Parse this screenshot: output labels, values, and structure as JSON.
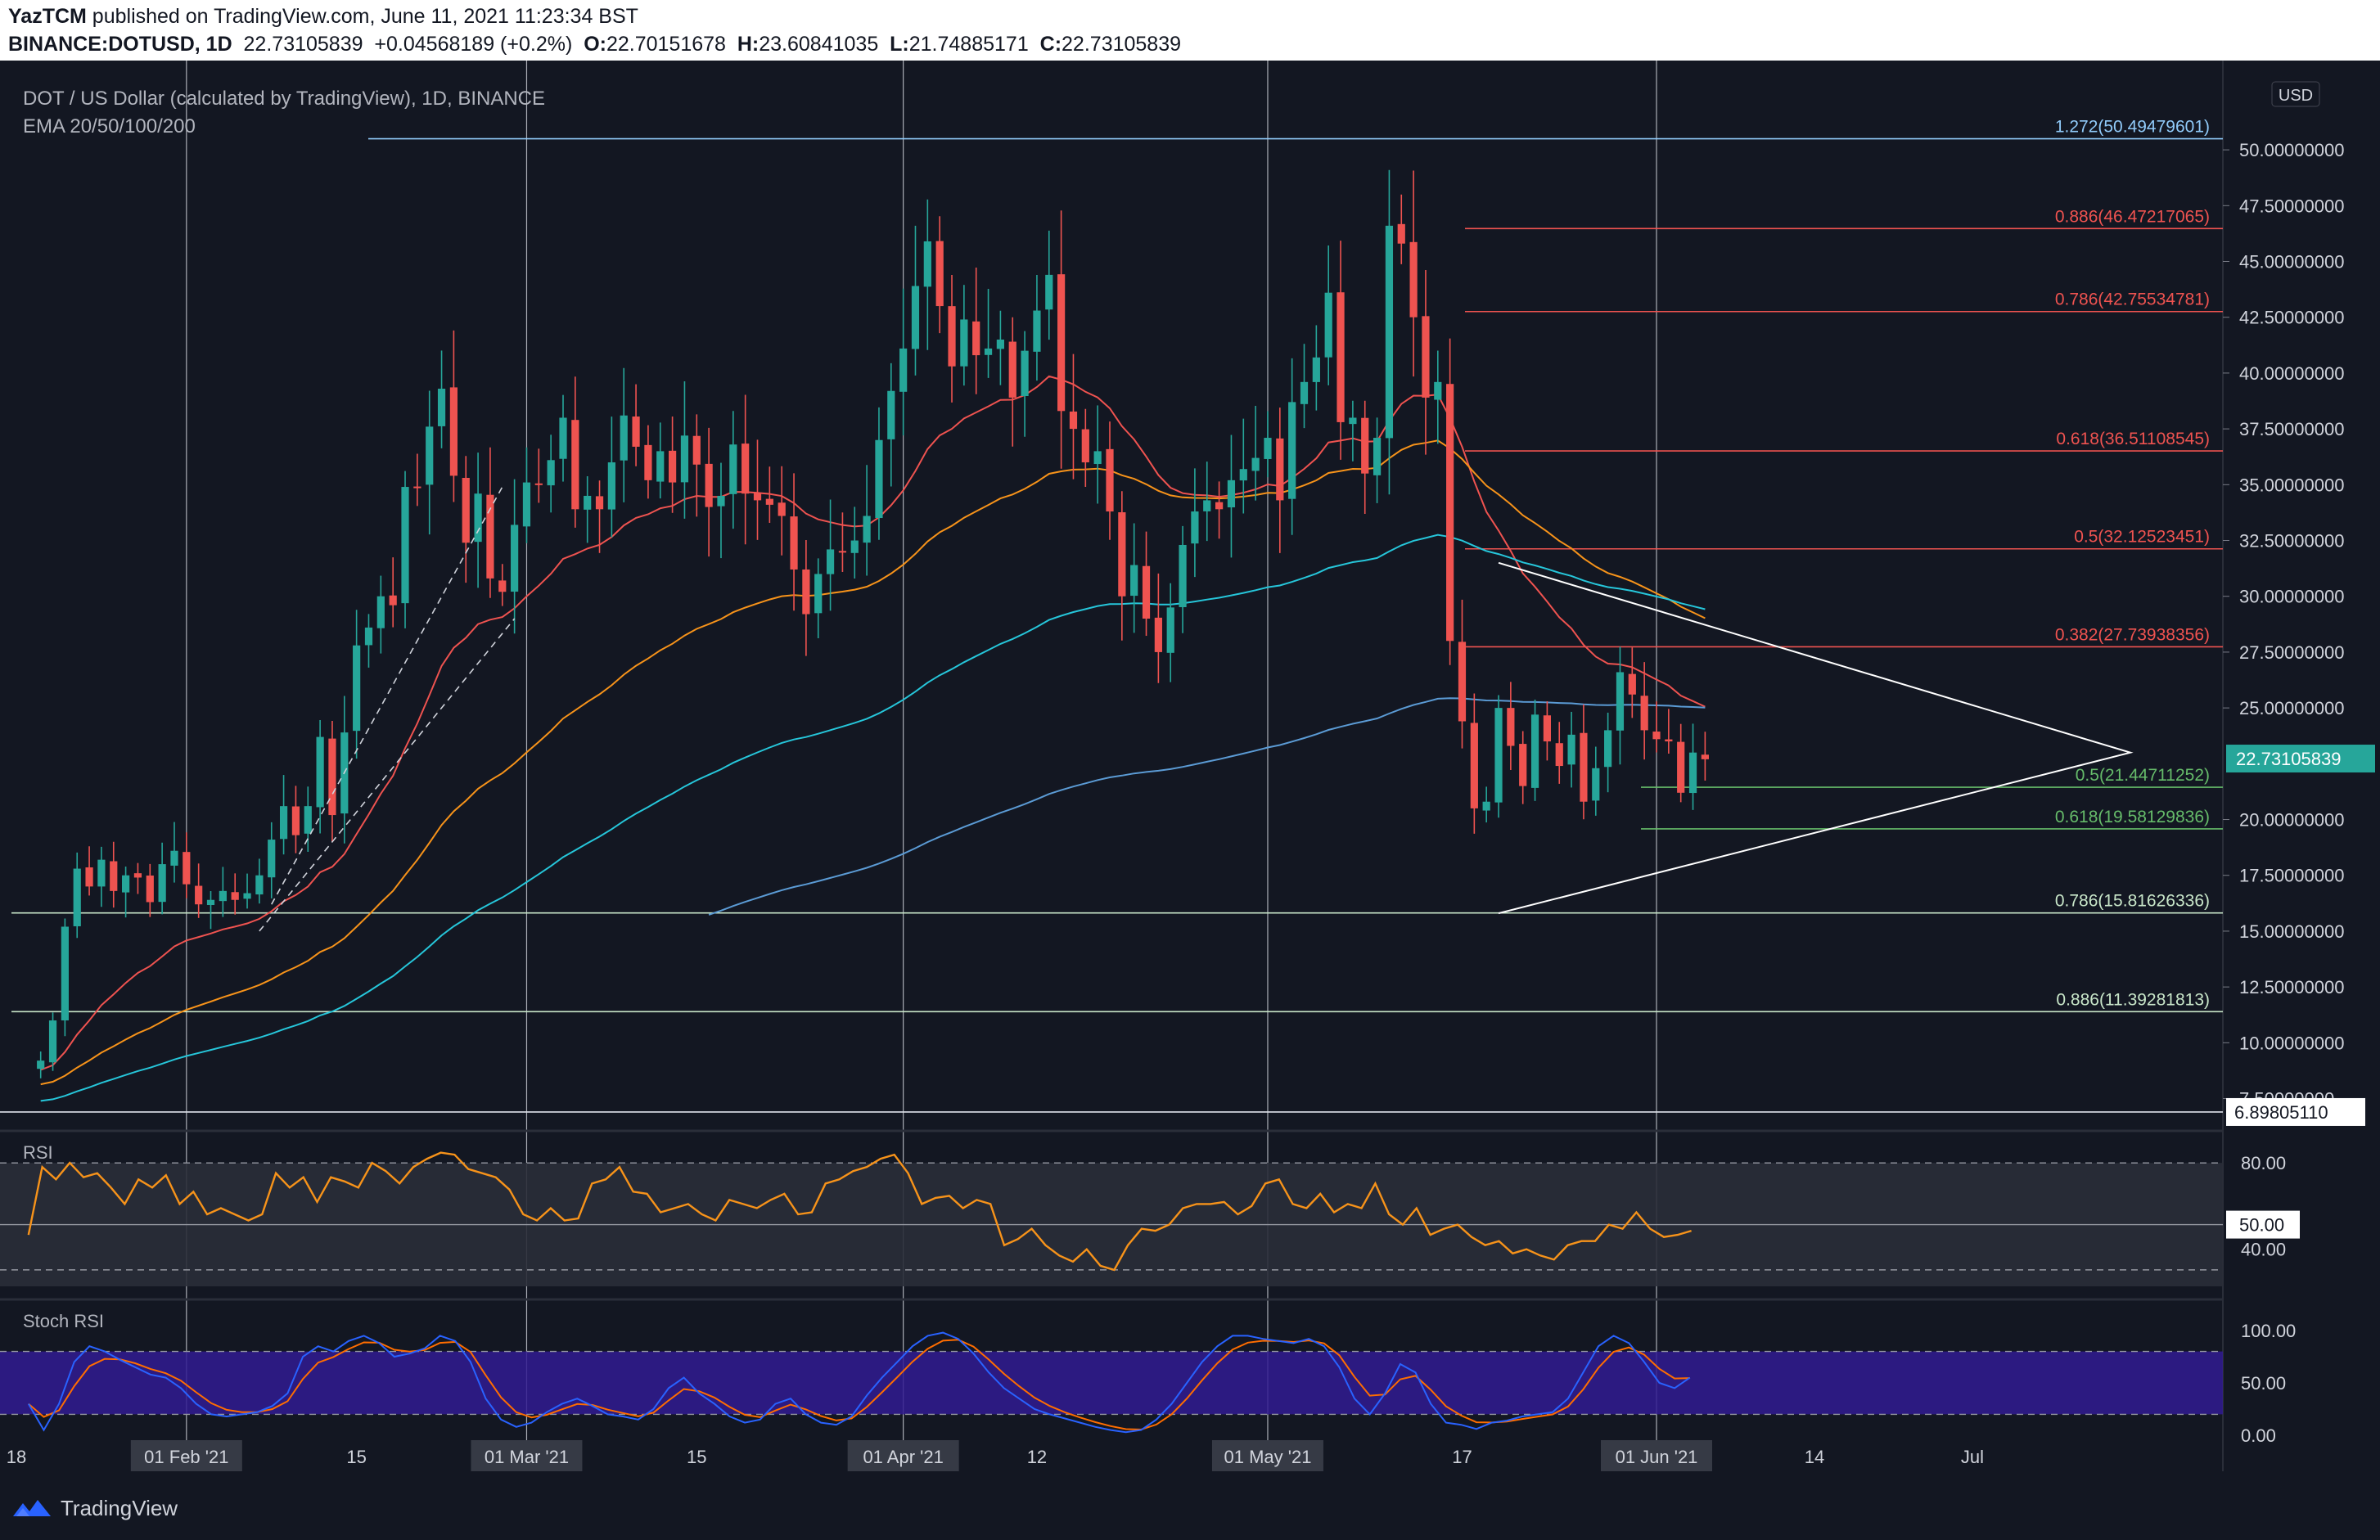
{
  "header": {
    "publisher": "YazTCM",
    "published_text": " published on TradingView.com, June 11, 2021 11:23:34 BST",
    "symbol": "BINANCE:DOTUSD, 1D",
    "last": "22.73105839",
    "change": "+0.04568189 (+0.2%)",
    "o_label": "O:",
    "o_value": "22.70151678",
    "h_label": "H:",
    "h_value": "23.60841035",
    "l_label": "L:",
    "l_value": "21.74885171",
    "c_label": "C:",
    "c_value": "22.73105839"
  },
  "chart_data": {
    "type": "candlestick",
    "title": "DOT / US Dollar (calculated by TradingView), 1D, BINANCE",
    "indicator_label": "EMA 20/50/100/200",
    "currency_label": "USD",
    "price_ticks": [
      "50.00000000",
      "47.50000000",
      "45.00000000",
      "42.50000000",
      "40.00000000",
      "37.50000000",
      "35.00000000",
      "32.50000000",
      "30.00000000",
      "27.50000000",
      "25.00000000",
      "20.00000000",
      "17.50000000",
      "15.00000000",
      "12.50000000",
      "10.00000000",
      "7.50000000"
    ],
    "price_tick_values": [
      50,
      47.5,
      45,
      42.5,
      40,
      37.5,
      35,
      32.5,
      30,
      27.5,
      25,
      20,
      17.5,
      15,
      12.5,
      10,
      7.5
    ],
    "ylim": [
      6.2,
      51.8
    ],
    "date_ticks": [
      "18",
      "01 Feb '21",
      "15",
      "01 Mar '21",
      "15",
      "01 Apr '21",
      "12",
      "01 May '21",
      "17",
      "01 Jun '21",
      "14",
      "Jul"
    ],
    "date_tick_days": [
      0,
      14,
      28,
      42,
      56,
      73,
      84,
      103,
      119,
      135,
      148,
      161
    ],
    "date_tick_highlight": [
      false,
      true,
      false,
      true,
      false,
      true,
      false,
      true,
      false,
      true,
      false,
      false
    ],
    "candle_seed_closes": [
      9.2,
      11.0,
      15.2,
      17.8,
      17.0,
      18.2,
      16.8,
      17.5,
      17.4,
      16.3,
      18.0,
      18.6,
      17.1,
      16.2,
      16.4,
      16.8,
      16.4,
      16.7,
      17.5,
      19.1,
      20.6,
      19.3,
      20.6,
      23.7,
      20.2,
      23.9,
      27.8,
      28.6,
      30.0,
      29.6,
      34.9,
      34.9,
      37.6,
      39.3,
      35.4,
      32.4,
      34.6,
      30.8,
      30.2,
      33.2,
      35.1,
      35.0,
      36.1,
      38.0,
      33.9,
      34.5,
      33.9,
      36.0,
      38.1,
      36.7,
      35.2,
      36.5,
      35.1,
      37.2,
      35.9,
      34.0,
      34.5,
      36.8,
      34.6,
      34.3,
      34.1,
      33.6,
      31.2,
      29.2,
      31.0,
      32.1,
      32.0,
      32.5,
      33.6,
      37.0,
      39.2,
      41.1,
      43.9,
      45.9,
      43.0,
      40.3,
      42.4,
      40.8,
      41.1,
      41.5,
      38.9,
      41.0,
      42.8,
      44.4,
      38.3,
      37.5,
      36.0,
      36.5,
      33.8,
      30.0,
      31.4,
      29.0,
      27.5,
      29.5,
      32.3,
      33.8,
      34.3,
      33.9,
      35.2,
      35.7,
      36.2,
      37.1,
      34.3,
      38.7,
      39.6,
      40.7,
      43.6,
      37.8,
      38.0,
      35.5,
      37.1,
      46.6,
      45.8,
      42.5,
      38.9,
      39.6,
      28.0,
      24.4,
      20.5,
      20.8,
      25.0,
      23.3,
      21.5,
      24.7,
      23.5,
      22.4,
      23.8,
      20.8,
      22.3,
      24.0,
      26.6,
      25.6,
      24.0,
      23.6,
      23.5,
      21.2,
      23.0,
      22.7
    ],
    "ema": [
      {
        "name": "EMA 20",
        "color": "#ef5350"
      },
      {
        "name": "EMA 50",
        "color": "#f7931a"
      },
      {
        "name": "EMA 100",
        "color": "#26c6da"
      },
      {
        "name": "EMA 200",
        "color": "#5b9bd5"
      }
    ],
    "fib_levels": [
      {
        "label": "1.272(50.49479601)",
        "value": 50.49479601,
        "color": "#90caf9"
      },
      {
        "label": "0.886(46.47217065)",
        "value": 46.47217065,
        "color": "#ef5350"
      },
      {
        "label": "0.786(42.75534781)",
        "value": 42.75534781,
        "color": "#ef5350"
      },
      {
        "label": "0.618(36.51108545)",
        "value": 36.51108545,
        "color": "#ef5350"
      },
      {
        "label": "0.5(32.12523451)",
        "value": 32.12523451,
        "color": "#ef5350"
      },
      {
        "label": "0.382(27.73938356)",
        "value": 27.73938356,
        "color": "#ef5350"
      },
      {
        "label": "0.5(21.44711252)",
        "value": 21.44711252,
        "color": "#66bb6a"
      },
      {
        "label": "0.618(19.58129836)",
        "value": 19.58129836,
        "color": "#66bb6a"
      },
      {
        "label": "0.786(15.81626336)",
        "value": 15.81626336,
        "color": "#c8e6c9"
      },
      {
        "label": "0.886(11.39281813)",
        "value": 11.39281813,
        "color": "#c8e6c9"
      }
    ],
    "last_price_label": "22.73105839",
    "last_price_value": 22.73105839,
    "support_label": "6.89805110",
    "support_value": 6.8980511,
    "rsi": {
      "label": "RSI",
      "ticks": [
        "80.00",
        "40.00"
      ],
      "tick_values": [
        80,
        40
      ],
      "current_label": "50.00",
      "current_value": 50,
      "band": [
        30,
        70
      ],
      "values": [
        45,
        78,
        72,
        80,
        73,
        75,
        68,
        60,
        72,
        68,
        74,
        60,
        66,
        55,
        58,
        55,
        52,
        55,
        75,
        68,
        73,
        61,
        73,
        71,
        68,
        80,
        76,
        70,
        78,
        82,
        85,
        84,
        77,
        75,
        73,
        67,
        55,
        52,
        58,
        52,
        53,
        70,
        72,
        78,
        66,
        65,
        56,
        58,
        60,
        55,
        52,
        62,
        60,
        58,
        62,
        65,
        55,
        56,
        70,
        72,
        76,
        78,
        82,
        84,
        75,
        60,
        63,
        64,
        58,
        62,
        60,
        40,
        43,
        48,
        40,
        35,
        32,
        38,
        30,
        28,
        40,
        48,
        47,
        50,
        58,
        60,
        60,
        61,
        55,
        59,
        70,
        72,
        60,
        58,
        65,
        56,
        60,
        58,
        70,
        55,
        50,
        58,
        45,
        48,
        50,
        44,
        40,
        42,
        36,
        38,
        35,
        33,
        40,
        42,
        42,
        50,
        48,
        56,
        48,
        44,
        45,
        47
      ]
    },
    "stoch_rsi": {
      "label": "Stoch RSI",
      "ticks": [
        "100.00",
        "50.00",
        "0.00"
      ],
      "tick_values": [
        100,
        50,
        0
      ],
      "k_color": "#2962ff",
      "d_color": "#ff6d00",
      "k_values": [
        30,
        5,
        30,
        70,
        85,
        80,
        72,
        65,
        58,
        55,
        45,
        30,
        20,
        18,
        20,
        22,
        28,
        40,
        75,
        85,
        80,
        90,
        95,
        88,
        75,
        78,
        83,
        95,
        90,
        70,
        35,
        15,
        8,
        12,
        22,
        30,
        35,
        28,
        20,
        18,
        15,
        25,
        45,
        55,
        40,
        30,
        18,
        12,
        15,
        30,
        35,
        20,
        12,
        10,
        18,
        38,
        55,
        70,
        85,
        95,
        98,
        92,
        78,
        60,
        45,
        35,
        25,
        20,
        16,
        12,
        8,
        5,
        3,
        5,
        15,
        30,
        50,
        70,
        85,
        95,
        95,
        92,
        90,
        88,
        92,
        85,
        65,
        35,
        20,
        40,
        68,
        60,
        30,
        12,
        10,
        6,
        12,
        14,
        18,
        20,
        22,
        35,
        60,
        85,
        95,
        88,
        70,
        50,
        45,
        55
      ]
    },
    "triangle": {
      "upper_start": [
        31.5,
        0
      ],
      "upper_end": [
        23.0,
        0
      ],
      "lower_start": [
        15.8,
        0
      ]
    }
  },
  "footer": {
    "brand": "TradingView"
  }
}
